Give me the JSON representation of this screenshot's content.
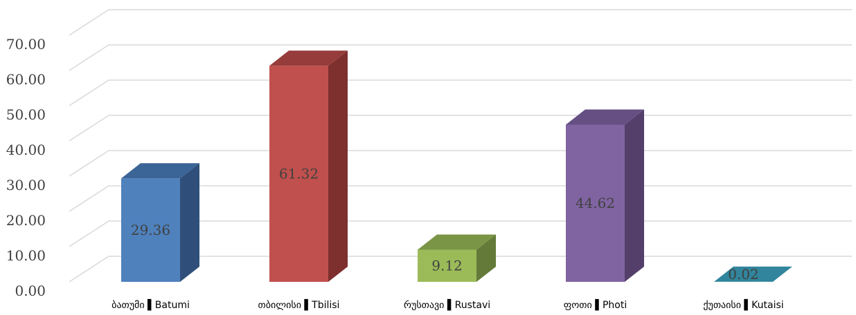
{
  "chart_data": {
    "type": "bar",
    "style": "3d-column",
    "categories": [
      "ბათუმი ▌Batumi",
      "თბილისი ▌Tbilisi",
      "რუსთავი ▌Rustavi",
      "ფოთი ▌Photi",
      "ქუთაისი ▌Kutaisi"
    ],
    "values": [
      29.36,
      61.32,
      9.12,
      44.62,
      0.02
    ],
    "value_labels": [
      "29.36",
      "61.32",
      "9.12",
      "44.62",
      "0.02"
    ],
    "y_ticks": [
      "0.00",
      "10.00",
      "20.00",
      "30.00",
      "40.00",
      "50.00",
      "60.00",
      "70.00"
    ],
    "ylim": [
      0,
      80
    ],
    "grid": true,
    "legend": "none",
    "colors": [
      {
        "front": "#4f81bd",
        "top": "#3b6497",
        "side": "#2f4f7a"
      },
      {
        "front": "#c0504d",
        "top": "#963d3b",
        "side": "#7d302e"
      },
      {
        "front": "#9bbb59",
        "top": "#7a9545",
        "side": "#637a38"
      },
      {
        "front": "#8064a2",
        "top": "#664f82",
        "side": "#533f6a"
      },
      {
        "front": "#4bacc6",
        "top": "#31859c",
        "side": "#2a6f82"
      }
    ]
  }
}
